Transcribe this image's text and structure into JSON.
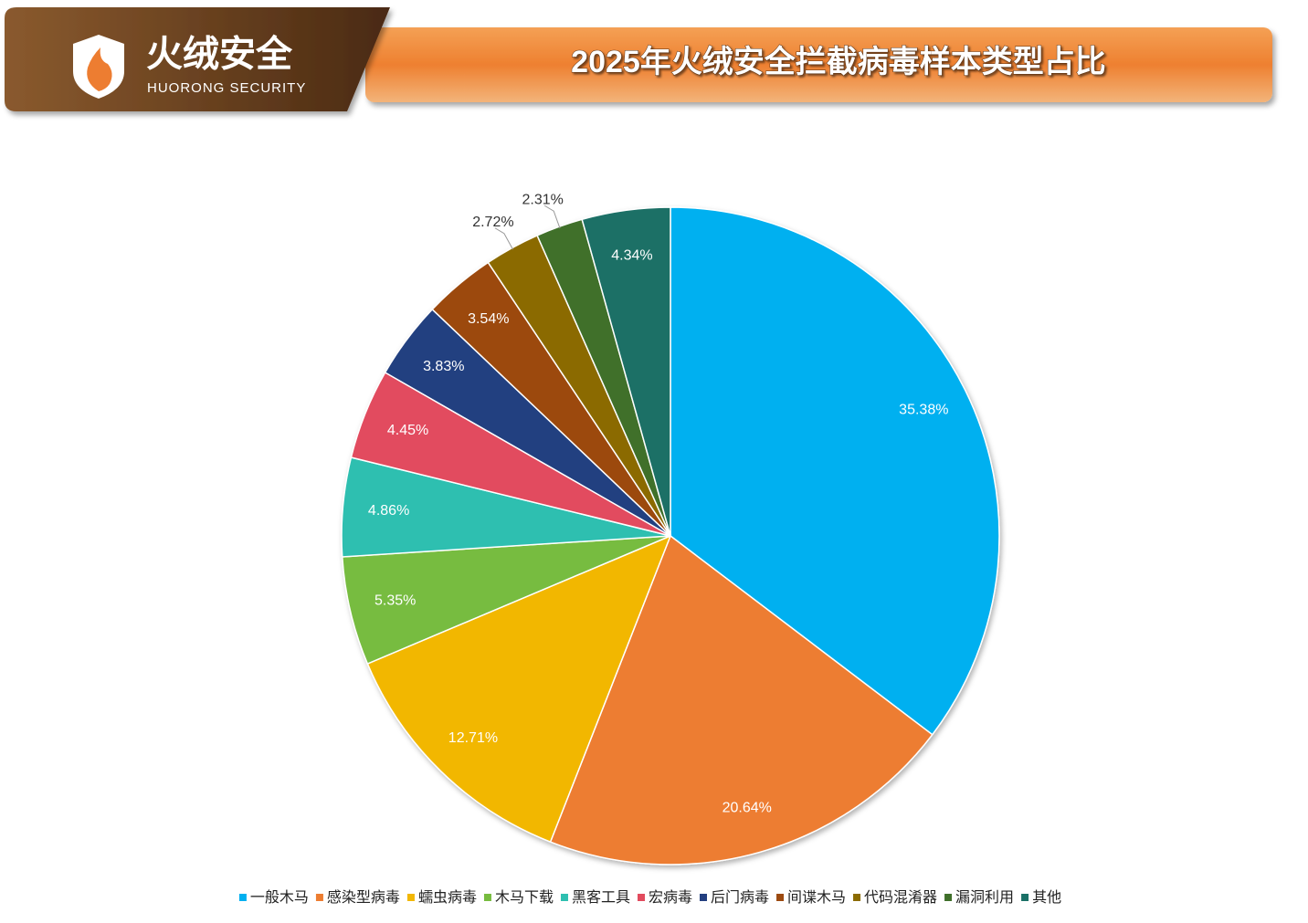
{
  "brand": {
    "name": "火绒安全",
    "tagline": "HUORONG SECURITY"
  },
  "chart_data": {
    "type": "pie",
    "title": "2025年火绒安全拦截病毒样本类型占比",
    "categories": [
      "一般木马",
      "感染型病毒",
      "蠕虫病毒",
      "木马下载",
      "黑客工具",
      "宏病毒",
      "后门病毒",
      "间谍木马",
      "代码混淆器",
      "漏洞利用",
      "其他"
    ],
    "values": [
      35.38,
      20.64,
      12.71,
      5.35,
      4.86,
      4.45,
      3.83,
      3.54,
      2.72,
      2.31,
      4.34
    ],
    "value_labels": [
      "35.38%",
      "20.64%",
      "12.71%",
      "5.35%",
      "4.86%",
      "4.45%",
      "3.83%",
      "3.54%",
      "2.72%",
      "2.31%",
      "4.34%"
    ],
    "colors": [
      "#00b0f0",
      "#ed7d31",
      "#f2b705",
      "#77bc3f",
      "#2ebfb0",
      "#e24b5e",
      "#233f80",
      "#9c4a10",
      "#8b6b00",
      "#3f6f2a",
      "#1a7066"
    ],
    "legend": "bottom"
  }
}
